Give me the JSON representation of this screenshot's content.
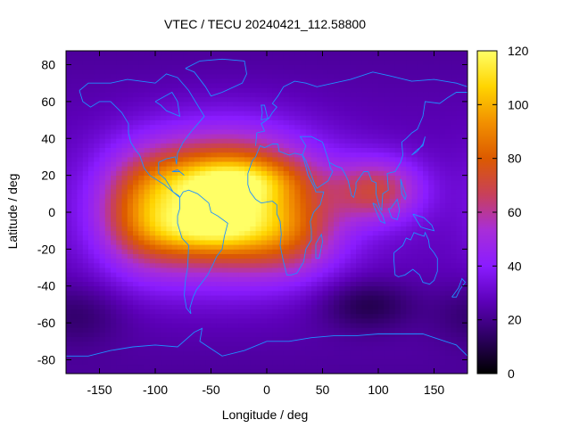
{
  "chart_data": {
    "type": "heatmap",
    "title": "VTEC / TECU 20240421_112.58800",
    "xlabel": "Longitude / deg",
    "ylabel": "Latitude / deg",
    "xlim": [
      -180,
      180
    ],
    "ylim": [
      -87.5,
      87.5
    ],
    "xticks": [
      -150,
      -100,
      -50,
      0,
      50,
      100,
      150
    ],
    "yticks": [
      -80,
      -60,
      -40,
      -20,
      0,
      20,
      40,
      60,
      80
    ],
    "colorbar": {
      "range": [
        0,
        120
      ],
      "ticks": [
        0,
        20,
        40,
        60,
        80,
        100,
        120
      ]
    },
    "palette": [
      "#000000",
      "#2c0060",
      "#5c00b8",
      "#8a1cff",
      "#a82ed8",
      "#c8405a",
      "#dc5a00",
      "#f29000",
      "#ffd400",
      "#ffff66"
    ],
    "coastline_color": "#1e90ff",
    "background_vtec": 22,
    "features": [
      {
        "name": "equatorial-anomaly-main",
        "lon": -35,
        "lat": 5,
        "peak": 92,
        "sigma_lon": 55,
        "sigma_lat": 24
      },
      {
        "name": "crest-north",
        "lon": -30,
        "lat": 18,
        "peak": 22,
        "sigma_lon": 40,
        "sigma_lat": 8
      },
      {
        "name": "crest-south",
        "lon": -55,
        "lat": -10,
        "peak": 20,
        "sigma_lon": 35,
        "sigma_lat": 8
      },
      {
        "name": "west-pacific-extension",
        "lon": -110,
        "lat": 0,
        "peak": 35,
        "sigma_lon": 30,
        "sigma_lat": 22
      },
      {
        "name": "africa-tongue",
        "lon": 25,
        "lat": -15,
        "peak": 18,
        "sigma_lon": 30,
        "sigma_lat": 15
      },
      {
        "name": "indian-ocean-band",
        "lon": 100,
        "lat": 12,
        "peak": 38,
        "sigma_lon": 28,
        "sigma_lat": 12
      },
      {
        "name": "depletion-southern-ocean",
        "lon": 90,
        "lat": -50,
        "peak": -15,
        "sigma_lon": 30,
        "sigma_lat": 10
      },
      {
        "name": "depletion-south-pacific",
        "lon": -170,
        "lat": -55,
        "peak": -10,
        "sigma_lon": 30,
        "sigma_lat": 12
      }
    ]
  }
}
